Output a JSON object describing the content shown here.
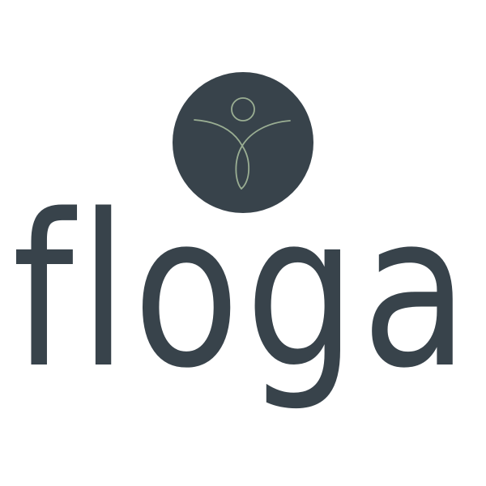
{
  "logo": {
    "wordmark": "floga",
    "colors": {
      "primary": "#38434b",
      "figure_line": "#9aae93",
      "background": "#ffffff"
    },
    "emblem_icon": "person-arms-raised-icon"
  }
}
